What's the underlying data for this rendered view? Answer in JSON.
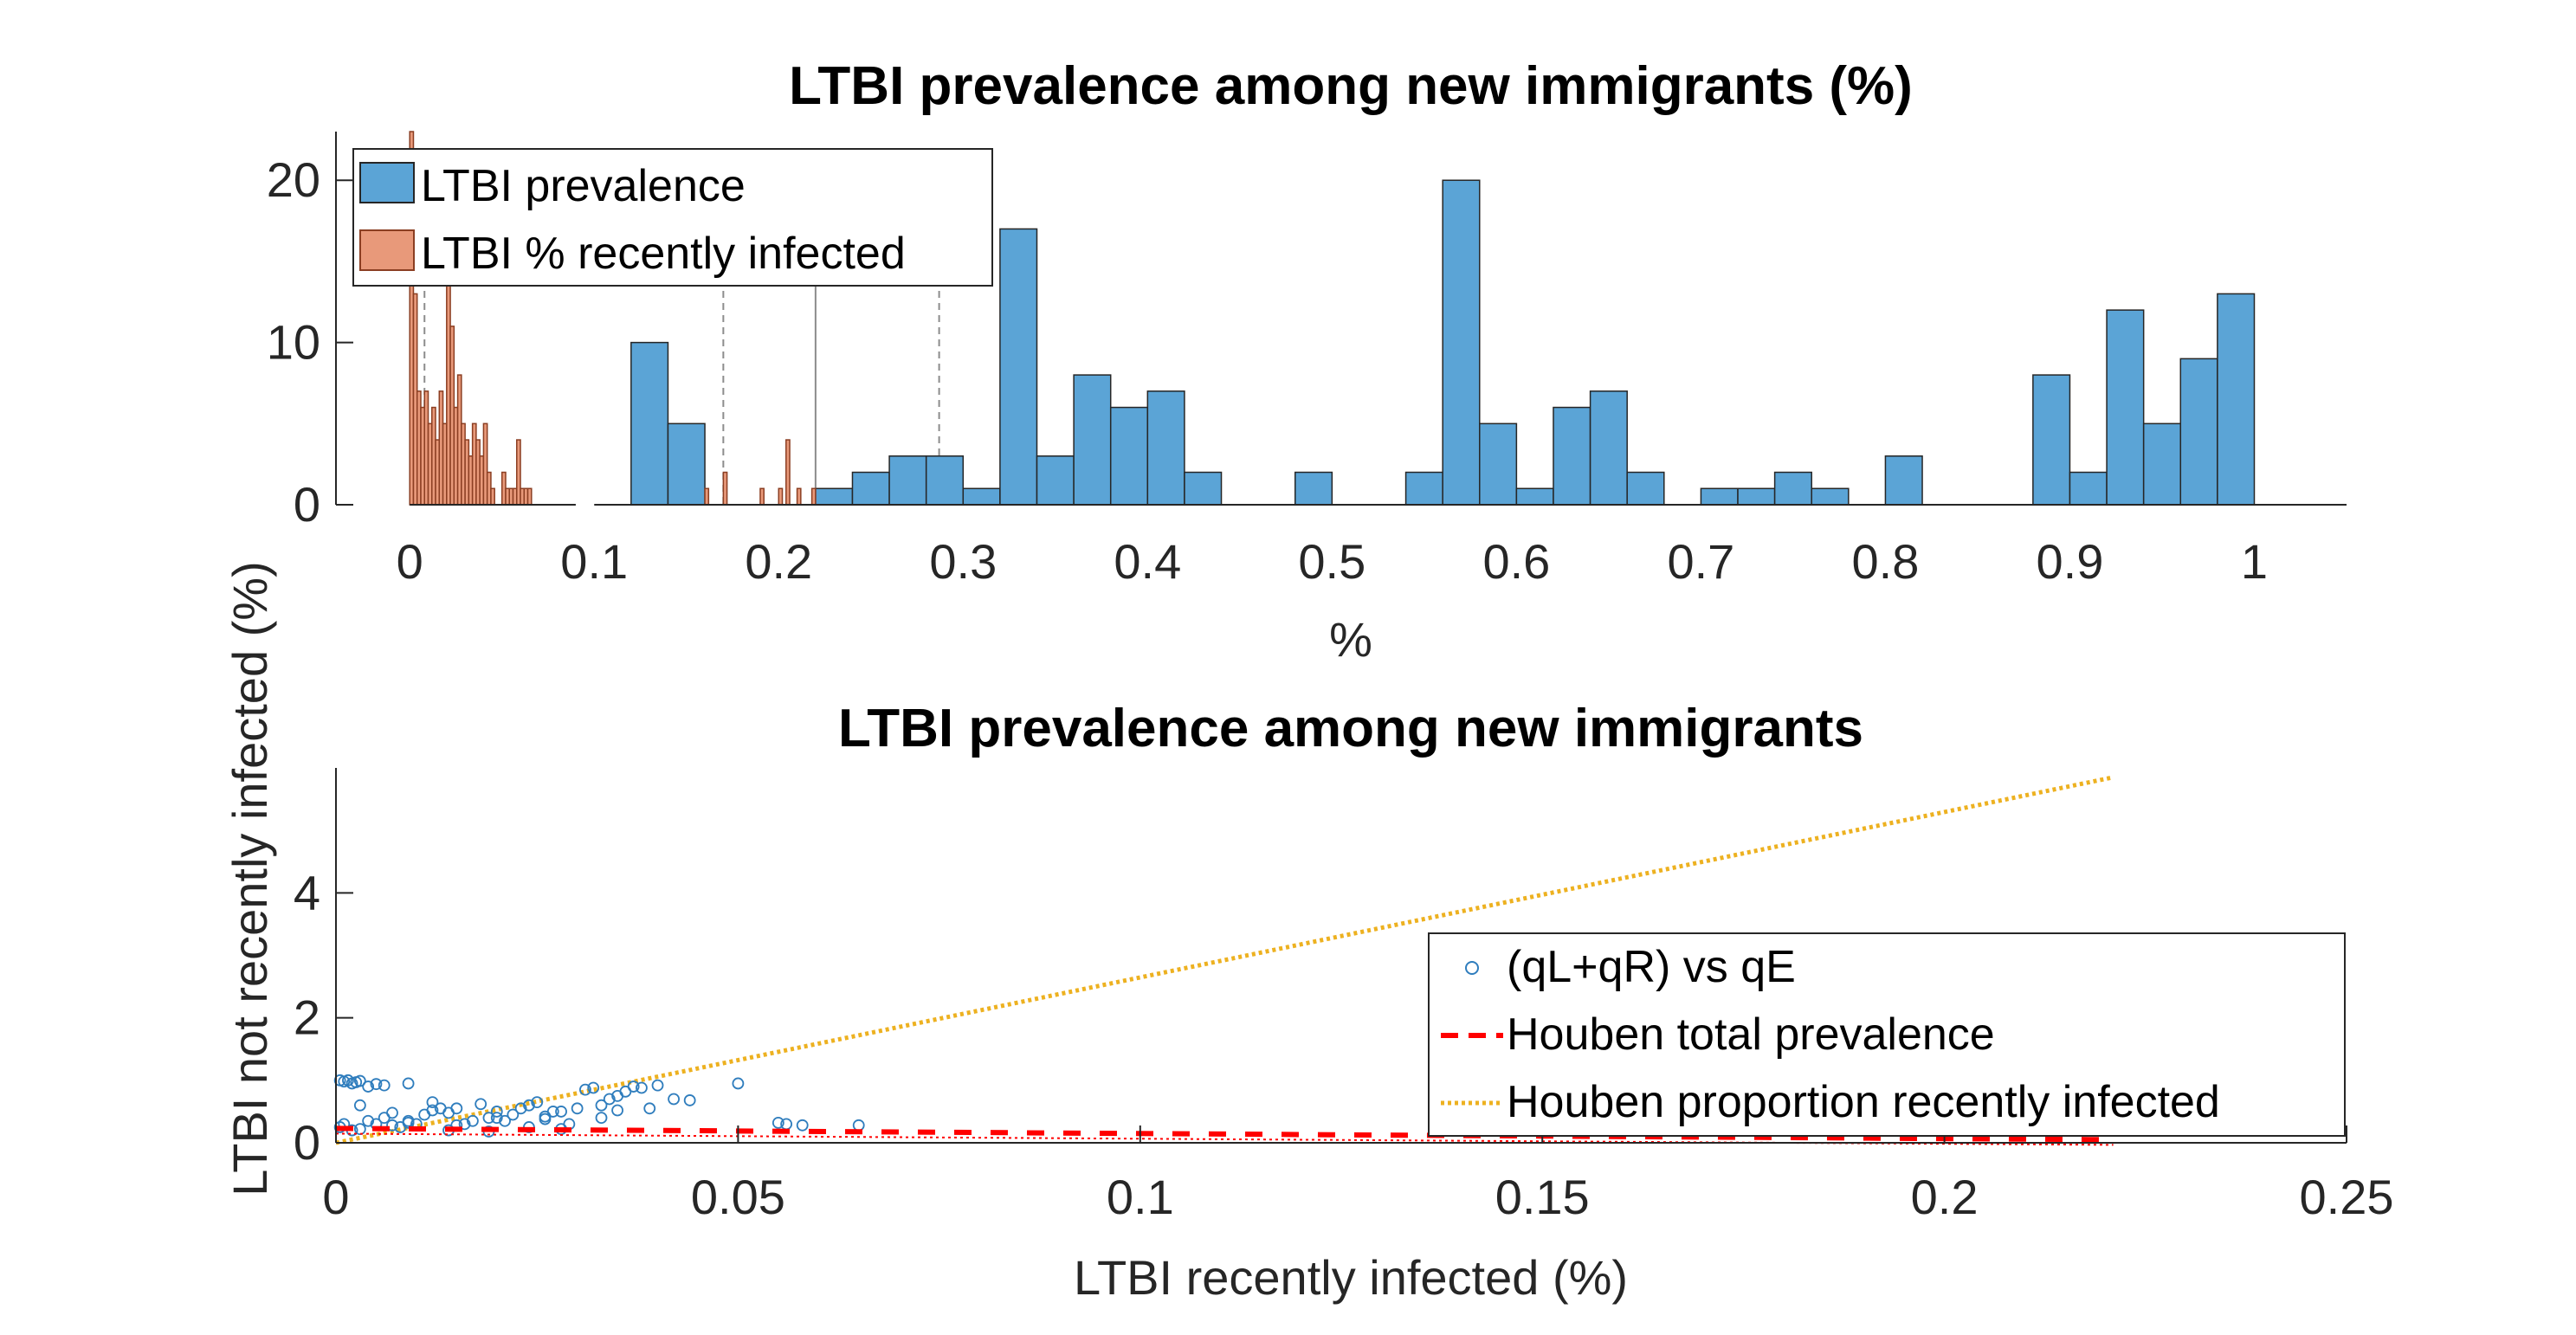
{
  "colors": {
    "prevalence_face": "#5ba4d6",
    "recent_face": "#e8997a",
    "recent_edge": "#8b3e22",
    "scatter": "#2f7dbd",
    "houben_total": "#ff0000",
    "houben_recent": "#edb120",
    "axis": "#262626"
  },
  "chart_data": [
    {
      "type": "bar",
      "title": "LTBI prevalence among new immigrants (%)",
      "xlabel": "%",
      "ylabel": "",
      "xlim": [
        -0.04,
        1.05
      ],
      "ylim": [
        0,
        23
      ],
      "xticks": [
        0,
        0.1,
        0.2,
        0.3,
        0.4,
        0.5,
        0.6,
        0.7,
        0.8,
        0.9,
        1
      ],
      "xticklabels": [
        "0",
        "0.1",
        "0.2",
        "0.3",
        "0.4",
        "0.5",
        "0.6",
        "0.7",
        "0.8",
        "0.9",
        "1"
      ],
      "yticks": [
        0,
        10,
        20
      ],
      "yticklabels": [
        "0",
        "10",
        "20"
      ],
      "grid": false,
      "legend_position": "top-left",
      "series": [
        {
          "name": "LTBI prevalence",
          "bin_width": 0.02,
          "bin_starts": [
            0.12,
            0.14,
            0.22,
            0.24,
            0.26,
            0.28,
            0.3,
            0.32,
            0.34,
            0.36,
            0.38,
            0.4,
            0.42,
            0.48,
            0.54,
            0.56,
            0.58,
            0.6,
            0.62,
            0.64,
            0.66,
            0.7,
            0.72,
            0.74,
            0.76,
            0.8,
            0.88,
            0.9,
            0.92,
            0.94,
            0.96,
            0.98
          ],
          "counts": [
            10,
            5,
            1,
            2,
            3,
            3,
            1,
            17,
            3,
            8,
            6,
            7,
            2,
            2,
            2,
            20,
            5,
            1,
            6,
            7,
            2,
            1,
            1,
            2,
            1,
            3,
            8,
            2,
            12,
            5,
            9,
            13
          ]
        },
        {
          "name": "LTBI % recently infected",
          "bin_width": 0.002,
          "bin_starts": [
            0.0,
            0.002,
            0.004,
            0.006,
            0.008,
            0.01,
            0.012,
            0.014,
            0.016,
            0.018,
            0.02,
            0.022,
            0.024,
            0.026,
            0.028,
            0.03,
            0.032,
            0.034,
            0.036,
            0.038,
            0.04,
            0.042,
            0.044,
            0.05,
            0.052,
            0.054,
            0.056,
            0.058,
            0.06,
            0.062,
            0.064,
            0.16,
            0.17,
            0.19,
            0.2,
            0.204,
            0.21,
            0.218
          ],
          "counts": [
            23,
            13,
            7,
            6,
            7,
            5,
            6,
            4,
            7,
            5,
            20,
            11,
            6,
            8,
            5,
            4,
            3,
            5,
            4,
            3,
            5,
            2,
            1,
            2,
            1,
            1,
            1,
            4,
            1,
            1,
            1,
            1,
            2,
            1,
            1,
            4,
            1,
            1
          ]
        }
      ],
      "reference_lines": [
        {
          "x": 0.008,
          "style": "dashed"
        },
        {
          "x": 0.17,
          "style": "dashed"
        },
        {
          "x": 0.22,
          "style": "solid"
        },
        {
          "x": 0.287,
          "style": "dashed"
        }
      ]
    },
    {
      "type": "scatter",
      "title": "LTBI prevalence among new immigrants",
      "xlabel": "LTBI recently infected (%)",
      "ylabel": "LTBI not recently infected (%)",
      "xlim": [
        0,
        0.25
      ],
      "ylim": [
        0,
        6
      ],
      "xticks": [
        0,
        0.05,
        0.1,
        0.15,
        0.2,
        0.25
      ],
      "xticklabels": [
        "0",
        "0.05",
        "0.1",
        "0.15",
        "0.2",
        "0.25"
      ],
      "yticks": [
        0,
        2,
        4
      ],
      "yticklabels": [
        "0",
        "2",
        "4"
      ],
      "grid": false,
      "legend_position": "right",
      "series": [
        {
          "name": "(qL+qR) vs qE",
          "style": "circle-markers",
          "points": [
            [
              0.0005,
              1.0
            ],
            [
              0.001,
              0.98
            ],
            [
              0.0015,
              1.0
            ],
            [
              0.002,
              0.95
            ],
            [
              0.0025,
              0.97
            ],
            [
              0.003,
              0.99
            ],
            [
              0.004,
              0.9
            ],
            [
              0.005,
              0.94
            ],
            [
              0.006,
              0.92
            ],
            [
              0.0005,
              0.25
            ],
            [
              0.001,
              0.3
            ],
            [
              0.002,
              0.2
            ],
            [
              0.003,
              0.22
            ],
            [
              0.004,
              0.35
            ],
            [
              0.005,
              0.3
            ],
            [
              0.006,
              0.4
            ],
            [
              0.007,
              0.28
            ],
            [
              0.008,
              0.25
            ],
            [
              0.009,
              0.32
            ],
            [
              0.01,
              0.3
            ],
            [
              0.011,
              0.45
            ],
            [
              0.012,
              0.52
            ],
            [
              0.013,
              0.55
            ],
            [
              0.014,
              0.48
            ],
            [
              0.015,
              0.55
            ],
            [
              0.016,
              0.3
            ],
            [
              0.017,
              0.35
            ],
            [
              0.018,
              0.62
            ],
            [
              0.02,
              0.4
            ],
            [
              0.021,
              0.35
            ],
            [
              0.022,
              0.45
            ],
            [
              0.023,
              0.55
            ],
            [
              0.024,
              0.6
            ],
            [
              0.025,
              0.65
            ],
            [
              0.026,
              0.42
            ],
            [
              0.027,
              0.5
            ],
            [
              0.028,
              0.5
            ],
            [
              0.029,
              0.3
            ],
            [
              0.03,
              0.55
            ],
            [
              0.031,
              0.85
            ],
            [
              0.032,
              0.88
            ],
            [
              0.033,
              0.6
            ],
            [
              0.034,
              0.7
            ],
            [
              0.035,
              0.75
            ],
            [
              0.036,
              0.82
            ],
            [
              0.037,
              0.9
            ],
            [
              0.038,
              0.88
            ],
            [
              0.04,
              0.92
            ],
            [
              0.042,
              0.7
            ],
            [
              0.044,
              0.68
            ],
            [
              0.05,
              0.95
            ],
            [
              0.009,
              0.95
            ],
            [
              0.012,
              0.65
            ],
            [
              0.014,
              0.2
            ],
            [
              0.019,
              0.18
            ],
            [
              0.024,
              0.25
            ],
            [
              0.028,
              0.22
            ],
            [
              0.055,
              0.32
            ],
            [
              0.056,
              0.3
            ],
            [
              0.058,
              0.28
            ],
            [
              0.065,
              0.28
            ],
            [
              0.019,
              0.4
            ],
            [
              0.015,
              0.28
            ],
            [
              0.009,
              0.35
            ],
            [
              0.007,
              0.48
            ],
            [
              0.003,
              0.6
            ],
            [
              0.02,
              0.5
            ],
            [
              0.026,
              0.38
            ],
            [
              0.033,
              0.4
            ],
            [
              0.035,
              0.52
            ],
            [
              0.039,
              0.55
            ]
          ]
        },
        {
          "name": "Houben total prevalence",
          "style": "dashed-line",
          "x": [
            0,
            0.221
          ],
          "y": [
            0.23,
            0.05
          ]
        },
        {
          "name": "Houben proportion recently infected",
          "style": "dotted-line",
          "x": [
            0,
            0.221
          ],
          "y": [
            0,
            5.85
          ]
        }
      ]
    }
  ]
}
